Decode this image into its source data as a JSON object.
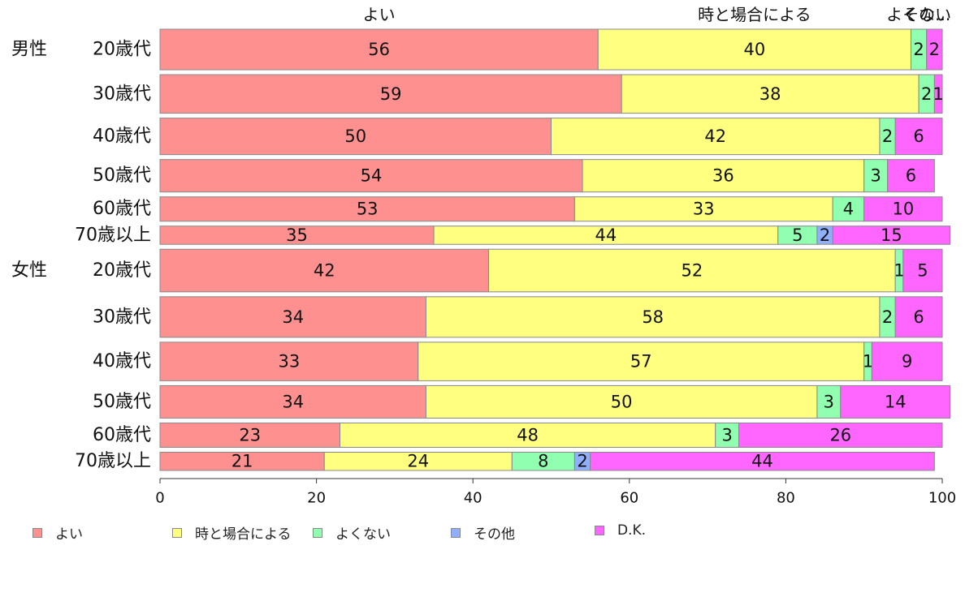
{
  "chart_data": {
    "type": "bar",
    "orientation": "horizontal",
    "stacked": true,
    "groups": [
      {
        "label": "男性",
        "rows": [
          "20歳代",
          "30歳代",
          "40歳代",
          "50歳代",
          "60歳代",
          "70歳以上"
        ]
      },
      {
        "label": "女性",
        "rows": [
          "20歳代",
          "30歳代",
          "40歳代",
          "50歳代",
          "60歳代",
          "70歳以上"
        ]
      }
    ],
    "categories": [
      "20歳代",
      "30歳代",
      "40歳代",
      "50歳代",
      "60歳代",
      "70歳以上",
      "20歳代",
      "30歳代",
      "40歳代",
      "50歳代",
      "60歳代",
      "70歳以上"
    ],
    "row_weights": [
      1.0,
      0.95,
      0.9,
      0.8,
      0.6,
      0.45,
      1.05,
      1.0,
      0.95,
      0.8,
      0.6,
      0.45
    ],
    "series": [
      {
        "name": "よい",
        "color": "#ff9090",
        "values": [
          56,
          59,
          50,
          54,
          53,
          35,
          42,
          34,
          33,
          34,
          23,
          21
        ]
      },
      {
        "name": "時と場合による",
        "color": "#ffff80",
        "values": [
          40,
          38,
          42,
          36,
          33,
          44,
          52,
          58,
          57,
          50,
          48,
          24
        ]
      },
      {
        "name": "よくない",
        "color": "#90ffb0",
        "values": [
          2,
          2,
          2,
          3,
          4,
          5,
          1,
          2,
          1,
          3,
          3,
          8
        ]
      },
      {
        "name": "その他",
        "color": "#90b0ff",
        "values": [
          0,
          0,
          0,
          0,
          0,
          2,
          0,
          0,
          0,
          0,
          0,
          2
        ]
      },
      {
        "name": "D.K.",
        "color": "#ff66ff",
        "values": [
          2,
          1,
          6,
          6,
          10,
          15,
          5,
          6,
          9,
          14,
          26,
          44
        ]
      }
    ],
    "top_labels": [
      "よい",
      "時と場合による",
      "よくない",
      "その..."
    ],
    "x_ticks": [
      0,
      20,
      40,
      60,
      80,
      100
    ],
    "xlim": [
      0,
      100
    ],
    "legend_position": "bottom",
    "grid": false
  }
}
